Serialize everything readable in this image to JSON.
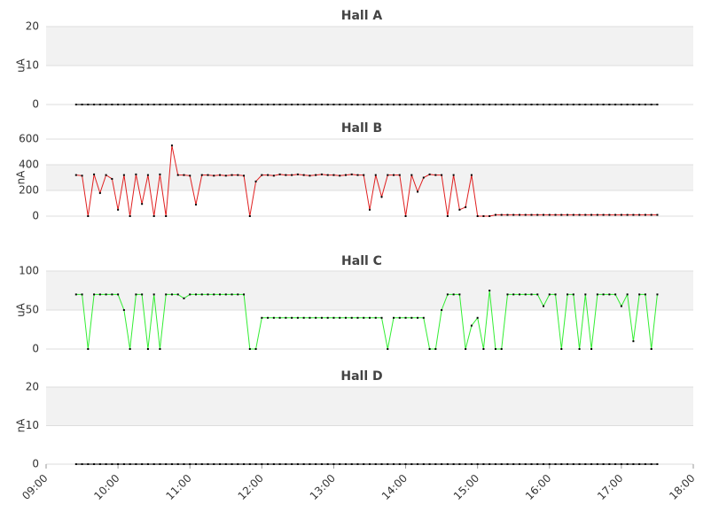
{
  "chart_data": [
    {
      "type": "line",
      "title": "Hall A",
      "ylabel": "uA",
      "ylim": [
        0,
        20
      ],
      "yticks": [
        0,
        10,
        20
      ],
      "xlim": [
        "09:00",
        "18:00"
      ],
      "grid": "banded",
      "x": [
        "09:25",
        "09:30",
        "09:35",
        "09:40",
        "09:45",
        "09:50",
        "09:55",
        "10:00",
        "10:05",
        "10:10",
        "10:15",
        "10:20",
        "10:25",
        "10:30",
        "10:35",
        "10:40",
        "10:45",
        "10:50",
        "10:55",
        "11:00",
        "11:05",
        "11:10",
        "11:15",
        "11:20",
        "11:25",
        "11:30",
        "11:35",
        "11:40",
        "11:45",
        "11:50",
        "11:55",
        "12:00",
        "12:05",
        "12:10",
        "12:15",
        "12:20",
        "12:25",
        "12:30",
        "12:35",
        "12:40",
        "12:45",
        "12:50",
        "12:55",
        "13:00",
        "13:05",
        "13:10",
        "13:15",
        "13:20",
        "13:25",
        "13:30",
        "13:35",
        "13:40",
        "13:45",
        "13:50",
        "13:55",
        "14:00",
        "14:05",
        "14:10",
        "14:15",
        "14:20",
        "14:25",
        "14:30",
        "14:35",
        "14:40",
        "14:45",
        "14:50",
        "14:55",
        "15:00",
        "15:05",
        "15:10",
        "15:15",
        "15:20",
        "15:25",
        "15:30",
        "15:35",
        "15:40",
        "15:45",
        "15:50",
        "15:55",
        "16:00",
        "16:05",
        "16:10",
        "16:15",
        "16:20",
        "16:25",
        "16:30",
        "16:35",
        "16:40",
        "16:45",
        "16:50",
        "16:55",
        "17:00",
        "17:05",
        "17:10",
        "17:15",
        "17:20",
        "17:25",
        "17:30"
      ],
      "series": [
        {
          "color": "#000000",
          "values": [
            0,
            0,
            0,
            0,
            0,
            0,
            0,
            0,
            0,
            0,
            0,
            0,
            0,
            0,
            0,
            0,
            0,
            0,
            0,
            0,
            0,
            0,
            0,
            0,
            0,
            0,
            0,
            0,
            0,
            0,
            0,
            0,
            0,
            0,
            0,
            0,
            0,
            0,
            0,
            0,
            0,
            0,
            0,
            0,
            0,
            0,
            0,
            0,
            0,
            0,
            0,
            0,
            0,
            0,
            0,
            0,
            0,
            0,
            0,
            0,
            0,
            0,
            0,
            0,
            0,
            0,
            0,
            0,
            0,
            0,
            0,
            0,
            0,
            0,
            0,
            0,
            0,
            0,
            0,
            0,
            0,
            0,
            0,
            0,
            0,
            0,
            0,
            0,
            0,
            0,
            0,
            0,
            0,
            0,
            0,
            0,
            0,
            0
          ]
        }
      ]
    },
    {
      "type": "line",
      "title": "Hall B",
      "ylabel": "nA",
      "ylim": [
        0,
        600
      ],
      "yticks": [
        0,
        200,
        400,
        600
      ],
      "xlim": [
        "09:00",
        "18:00"
      ],
      "grid": "banded",
      "x": [
        "09:25",
        "09:30",
        "09:35",
        "09:40",
        "09:45",
        "09:50",
        "09:55",
        "10:00",
        "10:05",
        "10:10",
        "10:15",
        "10:20",
        "10:25",
        "10:30",
        "10:35",
        "10:40",
        "10:45",
        "10:50",
        "10:55",
        "11:00",
        "11:05",
        "11:10",
        "11:15",
        "11:20",
        "11:25",
        "11:30",
        "11:35",
        "11:40",
        "11:45",
        "11:50",
        "11:55",
        "12:00",
        "12:05",
        "12:10",
        "12:15",
        "12:20",
        "12:25",
        "12:30",
        "12:35",
        "12:40",
        "12:45",
        "12:50",
        "12:55",
        "13:00",
        "13:05",
        "13:10",
        "13:15",
        "13:20",
        "13:25",
        "13:30",
        "13:35",
        "13:40",
        "13:45",
        "13:50",
        "13:55",
        "14:00",
        "14:05",
        "14:10",
        "14:15",
        "14:20",
        "14:25",
        "14:30",
        "14:35",
        "14:40",
        "14:45",
        "14:50",
        "14:55",
        "15:00",
        "15:05",
        "15:10",
        "15:15",
        "15:20",
        "15:25",
        "15:30",
        "15:35",
        "15:40",
        "15:45",
        "15:50",
        "15:55",
        "16:00",
        "16:05",
        "16:10",
        "16:15",
        "16:20",
        "16:25",
        "16:30",
        "16:35",
        "16:40",
        "16:45",
        "16:50",
        "16:55",
        "17:00",
        "17:05",
        "17:10",
        "17:15",
        "17:20",
        "17:25",
        "17:30"
      ],
      "series": [
        {
          "color": "#e02020",
          "values": [
            320,
            315,
            0,
            325,
            180,
            320,
            290,
            50,
            320,
            0,
            325,
            95,
            320,
            0,
            325,
            0,
            550,
            320,
            320,
            315,
            90,
            320,
            320,
            315,
            320,
            315,
            320,
            320,
            315,
            0,
            270,
            320,
            320,
            315,
            325,
            320,
            320,
            325,
            320,
            315,
            320,
            325,
            320,
            320,
            315,
            320,
            325,
            320,
            320,
            50,
            320,
            150,
            320,
            320,
            320,
            0,
            320,
            190,
            300,
            325,
            320,
            320,
            0,
            320,
            50,
            70,
            320,
            0,
            0,
            0,
            10,
            10,
            10,
            10,
            10,
            10,
            10,
            10,
            10,
            10,
            10,
            10,
            10,
            10,
            10,
            10,
            10,
            10,
            10,
            10,
            10,
            10,
            10,
            10,
            10,
            10,
            10,
            10
          ]
        }
      ]
    },
    {
      "type": "line",
      "title": "Hall C",
      "ylabel": "uA",
      "ylim": [
        0,
        100
      ],
      "yticks": [
        0,
        50,
        100
      ],
      "xlim": [
        "09:00",
        "18:00"
      ],
      "grid": "banded",
      "x": [
        "09:25",
        "09:30",
        "09:35",
        "09:40",
        "09:45",
        "09:50",
        "09:55",
        "10:00",
        "10:05",
        "10:10",
        "10:15",
        "10:20",
        "10:25",
        "10:30",
        "10:35",
        "10:40",
        "10:45",
        "10:50",
        "10:55",
        "11:00",
        "11:05",
        "11:10",
        "11:15",
        "11:20",
        "11:25",
        "11:30",
        "11:35",
        "11:40",
        "11:45",
        "11:50",
        "11:55",
        "12:00",
        "12:05",
        "12:10",
        "12:15",
        "12:20",
        "12:25",
        "12:30",
        "12:35",
        "12:40",
        "12:45",
        "12:50",
        "12:55",
        "13:00",
        "13:05",
        "13:10",
        "13:15",
        "13:20",
        "13:25",
        "13:30",
        "13:35",
        "13:40",
        "13:45",
        "13:50",
        "13:55",
        "14:00",
        "14:05",
        "14:10",
        "14:15",
        "14:20",
        "14:25",
        "14:30",
        "14:35",
        "14:40",
        "14:45",
        "14:50",
        "14:55",
        "15:00",
        "15:05",
        "15:10",
        "15:15",
        "15:20",
        "15:25",
        "15:30",
        "15:35",
        "15:40",
        "15:45",
        "15:50",
        "15:55",
        "16:00",
        "16:05",
        "16:10",
        "16:15",
        "16:20",
        "16:25",
        "16:30",
        "16:35",
        "16:40",
        "16:45",
        "16:50",
        "16:55",
        "17:00",
        "17:05",
        "17:10",
        "17:15",
        "17:20",
        "17:25",
        "17:30"
      ],
      "series": [
        {
          "color": "#33ee33",
          "values": [
            70,
            70,
            0,
            70,
            70,
            70,
            70,
            70,
            50,
            0,
            70,
            70,
            0,
            70,
            0,
            70,
            70,
            70,
            65,
            70,
            70,
            70,
            70,
            70,
            70,
            70,
            70,
            70,
            70,
            0,
            0,
            40,
            40,
            40,
            40,
            40,
            40,
            40,
            40,
            40,
            40,
            40,
            40,
            40,
            40,
            40,
            40,
            40,
            40,
            40,
            40,
            40,
            0,
            40,
            40,
            40,
            40,
            40,
            40,
            0,
            0,
            50,
            70,
            70,
            70,
            0,
            30,
            40,
            0,
            75,
            0,
            0,
            70,
            70,
            70,
            70,
            70,
            70,
            55,
            70,
            70,
            0,
            70,
            70,
            0,
            70,
            0,
            70,
            70,
            70,
            70,
            55,
            70,
            10,
            70,
            70,
            0,
            70
          ]
        }
      ]
    },
    {
      "type": "line",
      "title": "Hall D",
      "ylabel": "nA",
      "ylim": [
        0,
        20
      ],
      "yticks": [
        0,
        10,
        20
      ],
      "xlim": [
        "09:00",
        "18:00"
      ],
      "grid": "banded",
      "xticks": [
        "09:00",
        "10:00",
        "11:00",
        "12:00",
        "13:00",
        "14:00",
        "15:00",
        "16:00",
        "17:00",
        "18:00"
      ],
      "x": [
        "09:25",
        "09:30",
        "09:35",
        "09:40",
        "09:45",
        "09:50",
        "09:55",
        "10:00",
        "10:05",
        "10:10",
        "10:15",
        "10:20",
        "10:25",
        "10:30",
        "10:35",
        "10:40",
        "10:45",
        "10:50",
        "10:55",
        "11:00",
        "11:05",
        "11:10",
        "11:15",
        "11:20",
        "11:25",
        "11:30",
        "11:35",
        "11:40",
        "11:45",
        "11:50",
        "11:55",
        "12:00",
        "12:05",
        "12:10",
        "12:15",
        "12:20",
        "12:25",
        "12:30",
        "12:35",
        "12:40",
        "12:45",
        "12:50",
        "12:55",
        "13:00",
        "13:05",
        "13:10",
        "13:15",
        "13:20",
        "13:25",
        "13:30",
        "13:35",
        "13:40",
        "13:45",
        "13:50",
        "13:55",
        "14:00",
        "14:05",
        "14:10",
        "14:15",
        "14:20",
        "14:25",
        "14:30",
        "14:35",
        "14:40",
        "14:45",
        "14:50",
        "14:55",
        "15:00",
        "15:05",
        "15:10",
        "15:15",
        "15:20",
        "15:25",
        "15:30",
        "15:35",
        "15:40",
        "15:45",
        "15:50",
        "15:55",
        "16:00",
        "16:05",
        "16:10",
        "16:15",
        "16:20",
        "16:25",
        "16:30",
        "16:35",
        "16:40",
        "16:45",
        "16:50",
        "16:55",
        "17:00",
        "17:05",
        "17:10",
        "17:15",
        "17:20",
        "17:25",
        "17:30"
      ],
      "series": [
        {
          "color": "#000000",
          "values": [
            0,
            0,
            0,
            0,
            0,
            0,
            0,
            0,
            0,
            0,
            0,
            0,
            0,
            0,
            0,
            0,
            0,
            0,
            0,
            0,
            0,
            0,
            0,
            0,
            0,
            0,
            0,
            0,
            0,
            0,
            0,
            0,
            0,
            0,
            0,
            0,
            0,
            0,
            0,
            0,
            0,
            0,
            0,
            0,
            0,
            0,
            0,
            0,
            0,
            0,
            0,
            0,
            0,
            0,
            0,
            0,
            0,
            0,
            0,
            0,
            0,
            0,
            0,
            0,
            0,
            0,
            0,
            0,
            0,
            0,
            0,
            0,
            0,
            0,
            0,
            0,
            0,
            0,
            0,
            0,
            0,
            0,
            0,
            0,
            0,
            0,
            0,
            0,
            0,
            0,
            0,
            0,
            0,
            0,
            0,
            0,
            0,
            0
          ]
        }
      ]
    }
  ]
}
